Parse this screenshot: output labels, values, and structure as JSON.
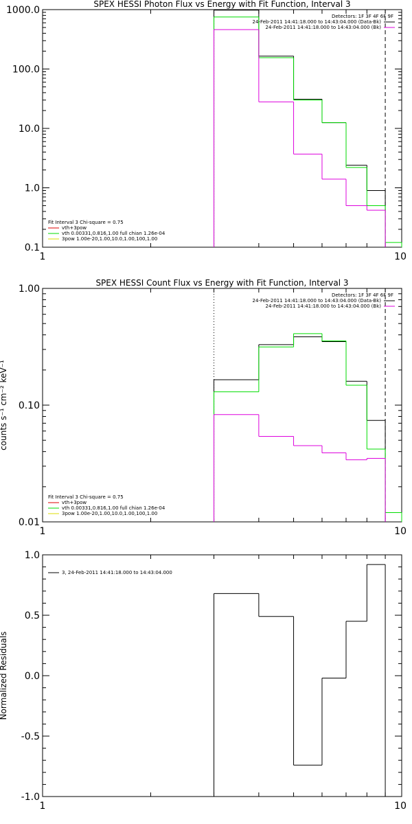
{
  "colors": {
    "data": "#000000",
    "total": "#00dd00",
    "component": "#dd00dd",
    "thermal_legend": "#dd0000",
    "pow_legend": "#dddd00",
    "axes": "#000000",
    "background": "#ffffff"
  },
  "chart_data": [
    {
      "id": "photon",
      "type": "line",
      "title": "SPEX HESSI Photon Flux vs Energy with Fit Function, Interval 3",
      "xlabel": "",
      "ylabel": "",
      "xscale": "log",
      "yscale": "log",
      "xlim": [
        1,
        10
      ],
      "ylim": [
        0.1,
        1000
      ],
      "xticks": [
        {
          "value": 1,
          "label": "1"
        },
        {
          "value": 10,
          "label": "10"
        }
      ],
      "yticks": [
        {
          "value": 0.1,
          "label": "0.1"
        },
        {
          "value": 1,
          "label": "1.0"
        },
        {
          "value": 10,
          "label": "10.0"
        },
        {
          "value": 100,
          "label": "100.0"
        },
        {
          "value": 1000,
          "label": "1000.0"
        }
      ],
      "bin_edges": [
        3,
        4,
        5,
        6,
        7,
        8,
        9,
        10
      ],
      "series": [
        {
          "key": "data",
          "style": "step",
          "values": [
            980,
            165,
            31,
            12.5,
            2.4,
            0.9,
            null
          ]
        },
        {
          "key": "total",
          "style": "step",
          "values": [
            750,
            155,
            30,
            12.5,
            2.2,
            0.5,
            0.12
          ]
        },
        {
          "key": "component",
          "style": "step",
          "values": [
            460,
            28,
            3.7,
            1.4,
            0.5,
            0.42,
            null
          ]
        }
      ],
      "vlines": [
        {
          "x": 3,
          "style": "dotted"
        },
        {
          "x": 9,
          "style": "dashed"
        }
      ],
      "legend_tr": [
        {
          "text": "Detectors: 1F 3F 4F 6F 9F",
          "color": null
        },
        {
          "text": "24-Feb-2011 14:41:18.000 to 14:43:04.000 (Data-Bk)",
          "color": "data"
        },
        {
          "text": "24-Feb-2011 14:41:18.000 to 14:43:04.000 (Bk)",
          "color": "component"
        }
      ],
      "legend_bl": [
        {
          "text": "Fit Interval 3   Chi-square = 0.75",
          "color": null
        },
        {
          "text": "vth+3pow",
          "color": "thermal_legend"
        },
        {
          "text": "vth 0.00331,0.816,1.00  full chian 1.26e-04",
          "color": "total"
        },
        {
          "text": "3pow 1.00e-20,1.00,10.0,1.00,100,1.00",
          "color": "pow_legend"
        }
      ]
    },
    {
      "id": "count",
      "type": "line",
      "title": "SPEX HESSI Count Flux vs Energy with Fit Function, Interval 3",
      "xlabel": "",
      "ylabel": "counts s⁻¹ cm⁻² keV⁻¹",
      "xscale": "log",
      "yscale": "log",
      "xlim": [
        1,
        10
      ],
      "ylim": [
        0.01,
        1
      ],
      "xticks": [
        {
          "value": 1,
          "label": "1"
        },
        {
          "value": 10,
          "label": "10"
        }
      ],
      "yticks": [
        {
          "value": 0.01,
          "label": "0.01"
        },
        {
          "value": 0.1,
          "label": "0.10"
        },
        {
          "value": 1,
          "label": "1.00"
        }
      ],
      "bin_edges": [
        3,
        4,
        5,
        6,
        7,
        8,
        9,
        10
      ],
      "series": [
        {
          "key": "data",
          "style": "step",
          "values": [
            0.165,
            0.33,
            0.385,
            0.35,
            0.16,
            0.074,
            null
          ]
        },
        {
          "key": "total",
          "style": "step",
          "values": [
            0.13,
            0.315,
            0.41,
            0.355,
            0.148,
            0.042,
            0.012
          ]
        },
        {
          "key": "component",
          "style": "step",
          "values": [
            0.083,
            0.054,
            0.045,
            0.039,
            0.034,
            0.035,
            null
          ]
        }
      ],
      "vlines": [
        {
          "x": 3,
          "style": "dotted"
        },
        {
          "x": 9,
          "style": "dashed"
        }
      ],
      "legend_tr": [
        {
          "text": "Detectors: 1F 3F 4F 6F 9F",
          "color": null
        },
        {
          "text": "24-Feb-2011 14:41:18.000 to 14:43:04.000 (Data-Bk)",
          "color": "data"
        },
        {
          "text": "24-Feb-2011 14:41:18.000 to 14:43:04.000 (Bk)",
          "color": "component"
        }
      ],
      "legend_bl": [
        {
          "text": "Fit Interval 3   Chi-square = 0.75",
          "color": null
        },
        {
          "text": "vth+3pow",
          "color": "thermal_legend"
        },
        {
          "text": "vth 0.00331,0.816,1.00  full chian 1.26e-04",
          "color": "total"
        },
        {
          "text": "3pow 1.00e-20,1.00,10.0,1.00,100,1.00",
          "color": "pow_legend"
        }
      ]
    },
    {
      "id": "resid",
      "type": "line",
      "title": "",
      "xlabel": "",
      "ylabel": "Normalized Residuals",
      "xscale": "log",
      "yscale": "linear",
      "xlim": [
        1,
        10
      ],
      "ylim": [
        -1,
        1
      ],
      "xticks": [
        {
          "value": 1,
          "label": "1"
        },
        {
          "value": 10,
          "label": "10"
        }
      ],
      "yticks": [
        {
          "value": -1,
          "label": "-1.0"
        },
        {
          "value": -0.5,
          "label": "-0.5"
        },
        {
          "value": 0,
          "label": "0.0"
        },
        {
          "value": 0.5,
          "label": "0.5"
        },
        {
          "value": 1,
          "label": "1.0"
        }
      ],
      "bin_edges": [
        3,
        4,
        5,
        6,
        7,
        8,
        9
      ],
      "series": [
        {
          "key": "data",
          "style": "step_closed",
          "values": [
            0.68,
            0.49,
            -0.74,
            -0.02,
            0.45,
            0.92
          ]
        }
      ],
      "vlines": [],
      "legend_tr": [],
      "legend_tl": [
        {
          "text": "3, 24-Feb-2011 14:41:18.000 to 14:43:04.000",
          "color": "data"
        }
      ],
      "legend_bl": []
    }
  ]
}
